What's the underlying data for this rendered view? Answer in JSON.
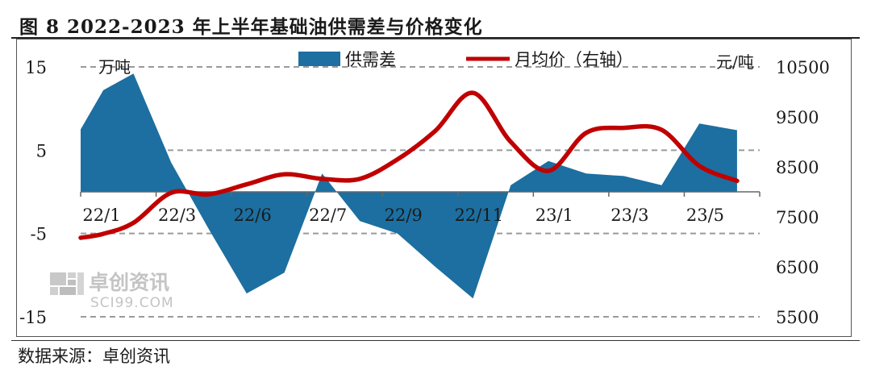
{
  "title": "图 8 2022-2023 年上半年基础油供需差与价格变化",
  "source": "数据来源：卓创资讯",
  "watermark": {
    "name": "卓创资讯",
    "site": "SCI99.COM"
  },
  "chart_data": {
    "type": "area+line",
    "left_unit": "万吨",
    "right_unit": "元/吨",
    "legend_position": "top-center",
    "y_left": {
      "ticks": [
        15,
        5,
        -5,
        -15
      ],
      "range": [
        -15,
        15
      ]
    },
    "y_right": {
      "ticks": [
        10500,
        9500,
        8500,
        7500,
        6500,
        5500
      ],
      "range": [
        5500,
        10500
      ]
    },
    "x_labels": [
      "22/1",
      "22/3",
      "22/6",
      "22/7",
      "22/9",
      "22/11",
      "23/1",
      "23/3",
      "23/5"
    ],
    "series": [
      {
        "name": "供需差",
        "type": "area",
        "color": "#1c6fa0",
        "points": [
          [
            0,
            7.5
          ],
          [
            0.6,
            12.2
          ],
          [
            1.4,
            14.2
          ],
          [
            2.4,
            3.5
          ],
          [
            3.4,
            -4.5
          ],
          [
            4.4,
            -12.2
          ],
          [
            5.4,
            -9.7
          ],
          [
            6.4,
            2.2
          ],
          [
            7.4,
            -3.5
          ],
          [
            8.4,
            -5
          ],
          [
            9.4,
            -9
          ],
          [
            10.4,
            -12.8
          ],
          [
            11.4,
            0.8
          ],
          [
            12.4,
            3.7
          ],
          [
            13.4,
            2.2
          ],
          [
            14.4,
            1.9
          ],
          [
            15.4,
            0.8
          ],
          [
            16.4,
            8.2
          ],
          [
            17.4,
            7.4
          ]
        ]
      },
      {
        "name": "月均价（右轴）",
        "type": "line",
        "color": "#c00000",
        "points": [
          [
            0,
            7080
          ],
          [
            0.6,
            7160
          ],
          [
            1.4,
            7380
          ],
          [
            2.4,
            7980
          ],
          [
            3.4,
            7950
          ],
          [
            4.4,
            8150
          ],
          [
            5.4,
            8350
          ],
          [
            6.4,
            8260
          ],
          [
            7.4,
            8260
          ],
          [
            8.4,
            8650
          ],
          [
            9.4,
            9220
          ],
          [
            10.4,
            9980
          ],
          [
            11.4,
            9000
          ],
          [
            12.4,
            8420
          ],
          [
            13.4,
            9180
          ],
          [
            14.4,
            9280
          ],
          [
            15.4,
            9240
          ],
          [
            16.4,
            8520
          ],
          [
            17.4,
            8220
          ]
        ]
      }
    ]
  }
}
